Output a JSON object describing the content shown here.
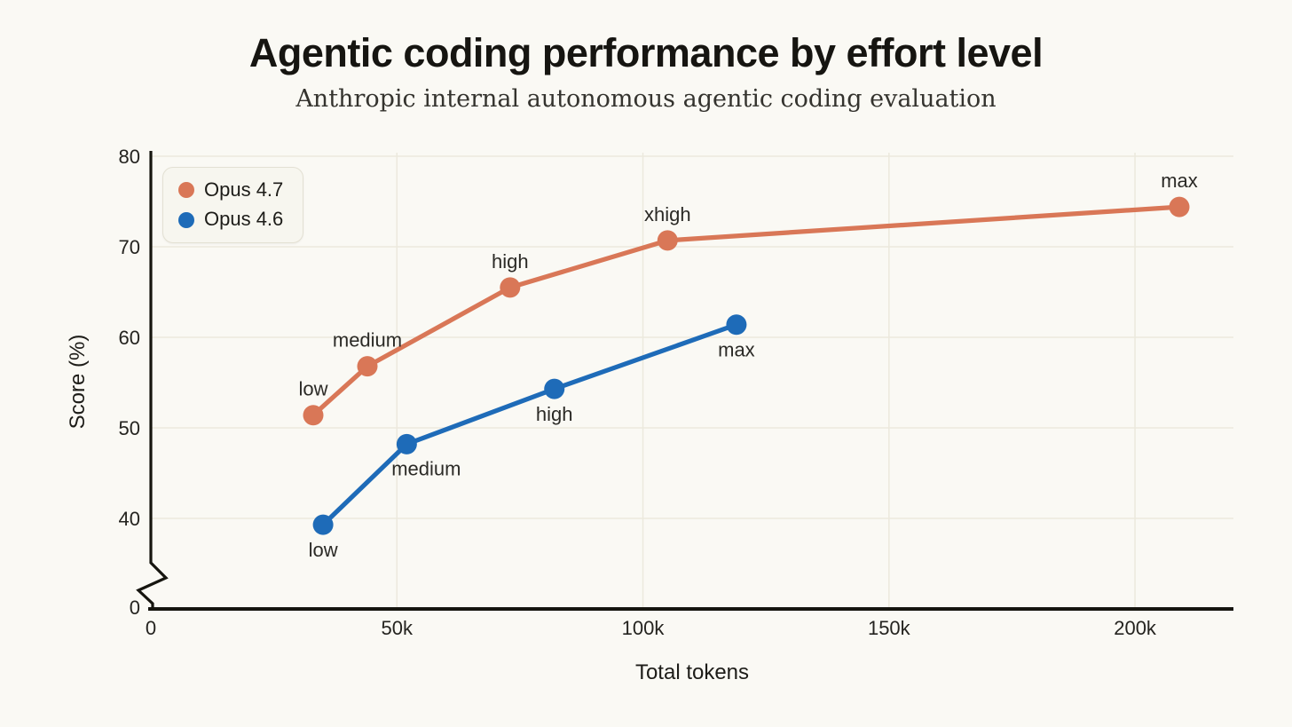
{
  "chart_data": {
    "type": "line",
    "title": "Agentic coding performance by effort level",
    "subtitle": "Anthropic internal autonomous agentic coding evaluation",
    "xlabel": "Total tokens",
    "ylabel": "Score (%)",
    "grid": true,
    "legend_position": "top-left",
    "x_axis": {
      "min": 0,
      "max": 220000,
      "ticks": [
        {
          "value": 0,
          "label": "0"
        },
        {
          "value": 50000,
          "label": "50k"
        },
        {
          "value": 100000,
          "label": "100k"
        },
        {
          "value": 150000,
          "label": "150k"
        },
        {
          "value": 200000,
          "label": "200k"
        }
      ]
    },
    "y_axis": {
      "visible_min": 40,
      "visible_max": 80,
      "broken_below": 40,
      "ticks": [
        {
          "value": 0,
          "label": "0"
        },
        {
          "value": 40,
          "label": "40"
        },
        {
          "value": 50,
          "label": "50"
        },
        {
          "value": 60,
          "label": "60"
        },
        {
          "value": 70,
          "label": "70"
        },
        {
          "value": 80,
          "label": "80"
        }
      ]
    },
    "series": [
      {
        "name": "Opus 4.7",
        "color": "#d97757",
        "points": [
          {
            "effort": "low",
            "x": 33000,
            "y": 51.4,
            "label_pos": "above"
          },
          {
            "effort": "medium",
            "x": 44000,
            "y": 56.8,
            "label_pos": "above"
          },
          {
            "effort": "high",
            "x": 73000,
            "y": 65.5,
            "label_pos": "above"
          },
          {
            "effort": "xhigh",
            "x": 105000,
            "y": 70.7,
            "label_pos": "above"
          },
          {
            "effort": "max",
            "x": 209000,
            "y": 74.4,
            "label_pos": "above"
          }
        ]
      },
      {
        "name": "Opus 4.6",
        "color": "#1e6bb8",
        "points": [
          {
            "effort": "low",
            "x": 35000,
            "y": 39.3,
            "label_pos": "below"
          },
          {
            "effort": "medium",
            "x": 52000,
            "y": 48.2,
            "label_pos": "below-right"
          },
          {
            "effort": "high",
            "x": 82000,
            "y": 54.3,
            "label_pos": "below"
          },
          {
            "effort": "max",
            "x": 119000,
            "y": 61.4,
            "label_pos": "below"
          }
        ]
      }
    ],
    "colors": {
      "background": "#faf9f4",
      "grid": "#ece9dd",
      "axis": "#16150f",
      "tick_text": "#24231f",
      "point_label_text": "#2b2a26",
      "legend_bg": "#f7f6ef",
      "legend_border": "#e3e0d3"
    }
  }
}
